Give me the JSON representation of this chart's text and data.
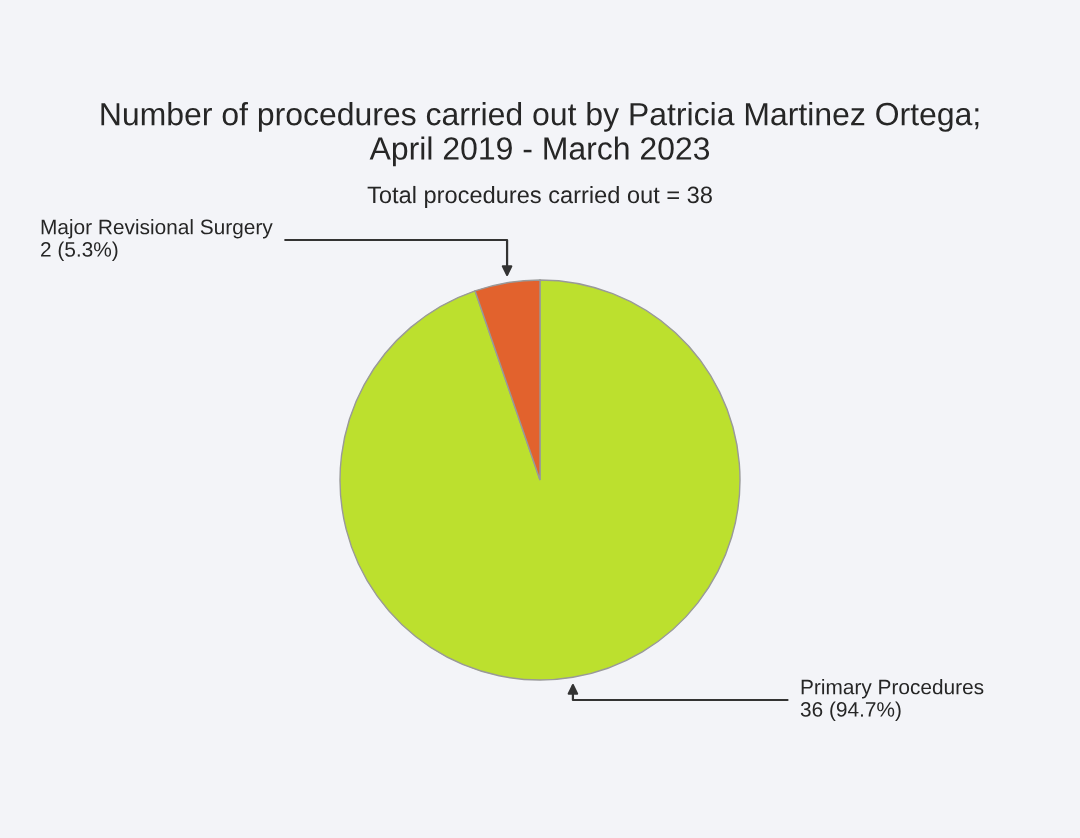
{
  "chart_data": {
    "type": "pie",
    "title": "Number of procedures carried out by Patricia Martinez Ortega;\nApril 2019 - March 2023",
    "subtitle": "Total procedures carried out = 38",
    "categories": [
      "Primary Procedures",
      "Major Revisional Surgery"
    ],
    "values": [
      36,
      2
    ],
    "colors": [
      "#bce02e",
      "#e2622d"
    ],
    "value_labels": [
      "36 (94.7%)",
      "2 (5.3%)"
    ],
    "legend": false
  }
}
